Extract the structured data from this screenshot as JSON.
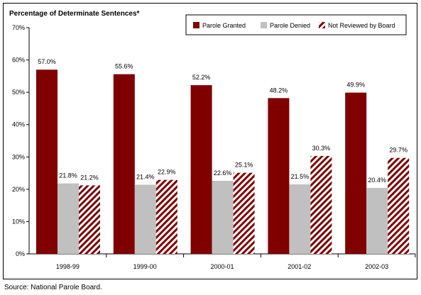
{
  "chart_data": {
    "type": "bar",
    "ylabel": "Percentage of Determinate Sentences*",
    "categories": [
      "1998-99",
      "1999-00",
      "2000-01",
      "2001-02",
      "2002-03"
    ],
    "series": [
      {
        "name": "Parole Granted",
        "values": [
          57.0,
          55.6,
          52.2,
          48.2,
          49.9
        ],
        "labels": [
          "57.0%",
          "55.6%",
          "52.2%",
          "48.2%",
          "49.9%"
        ],
        "color": "#800000",
        "fill": "solid"
      },
      {
        "name": "Parole Denied",
        "values": [
          21.8,
          21.4,
          22.6,
          21.5,
          20.4
        ],
        "labels": [
          "21.8%",
          "21.4%",
          "22.6%",
          "21.5%",
          "20.4%"
        ],
        "color": "#c0c0c0",
        "fill": "solid"
      },
      {
        "name": "Not Reviewed by Board",
        "values": [
          21.2,
          22.9,
          25.1,
          30.3,
          29.7
        ],
        "labels": [
          "21.2%",
          "22.9%",
          "25.1%",
          "30.3%",
          "29.7%"
        ],
        "color": "#800000",
        "fill": "diagonal-hatch"
      }
    ],
    "ylim": [
      0,
      70
    ],
    "yticks": [
      "0%",
      "10%",
      "20%",
      "30%",
      "40%",
      "50%",
      "60%",
      "70%"
    ],
    "legend_placement": "top-right",
    "grid": false
  },
  "source": "Source:  National Parole Board."
}
